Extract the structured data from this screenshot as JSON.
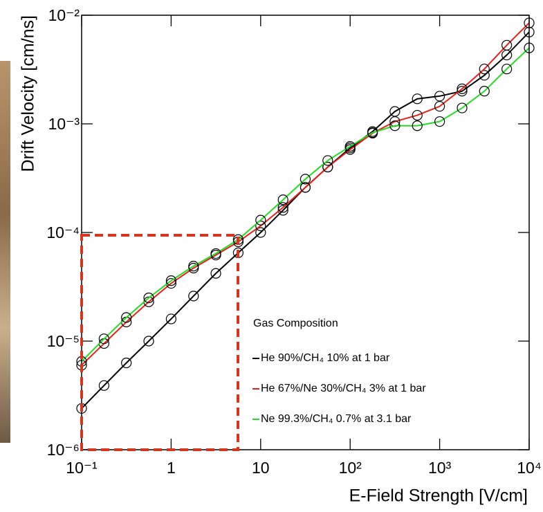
{
  "chart_data": {
    "type": "line",
    "x_label": "E-Field Strength [V/cm]",
    "y_label": "Drift Velocity [cm/ns]",
    "x_scale": "log",
    "y_scale": "log",
    "xlim": [
      0.1,
      10000
    ],
    "ylim": [
      1e-06,
      0.01
    ],
    "xticks": [
      {
        "value": 0.1,
        "label": "10⁻¹"
      },
      1,
      10,
      {
        "value": 100,
        "label": "10²"
      },
      {
        "value": 1000,
        "label": "10³"
      },
      {
        "value": 10000,
        "label": "10⁴"
      }
    ],
    "yticks": [
      {
        "value": 1e-06,
        "label": "10⁻⁶"
      },
      {
        "value": 1e-05,
        "label": "10⁻⁵"
      },
      {
        "value": 0.0001,
        "label": "10⁻⁴"
      },
      {
        "value": 0.001,
        "label": "10⁻³"
      },
      {
        "value": 0.01,
        "label": "10⁻²"
      }
    ],
    "legend_title": "Gas Composition",
    "legend": "lower right",
    "marker_color": "#000000",
    "x": [
      0.1,
      0.178,
      0.316,
      0.562,
      1,
      1.78,
      3.16,
      5.62,
      10,
      17.8,
      31.6,
      56.2,
      100,
      178,
      316,
      562,
      1000,
      1780,
      3160,
      5620,
      10000
    ],
    "series": [
      {
        "name": "He 90%/CH₄ 10% at 1 bar",
        "color": "#000000",
        "values": [
          2.4e-06,
          3.9e-06,
          6.3e-06,
          1e-05,
          1.6e-05,
          2.6e-05,
          4.2e-05,
          6.5e-05,
          0.0001,
          0.00016,
          0.00026,
          0.0004,
          0.0006,
          0.00085,
          0.0013,
          0.0017,
          0.0018,
          0.002,
          0.0028,
          0.0043,
          0.007
        ]
      },
      {
        "name": "He 67%/Ne 30%/CH₄ 3% at 1 bar",
        "color": "#e8201a",
        "values": [
          6e-06,
          9.5e-06,
          1.5e-05,
          2.3e-05,
          3.4e-05,
          4.7e-05,
          6.2e-05,
          8.2e-05,
          0.000115,
          0.00017,
          0.00026,
          0.0004,
          0.00058,
          0.00082,
          0.00105,
          0.0012,
          0.00145,
          0.0021,
          0.0032,
          0.0053,
          0.0085
        ]
      },
      {
        "name": "Ne 99.3%/CH₄ 0.7% at 3.1 bar",
        "color": "#22dd22",
        "values": [
          6.5e-06,
          1.05e-05,
          1.65e-05,
          2.5e-05,
          3.6e-05,
          4.9e-05,
          6.4e-05,
          8.6e-05,
          0.00013,
          0.0002,
          0.00031,
          0.00046,
          0.00062,
          0.00083,
          0.00096,
          0.00096,
          0.00105,
          0.0014,
          0.002,
          0.0032,
          0.005
        ]
      }
    ]
  }
}
